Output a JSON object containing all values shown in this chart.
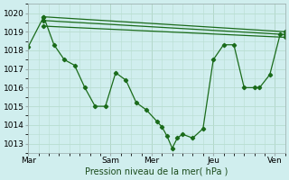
{
  "xlabel": "Pression niveau de la mer( hPa )",
  "background_color": "#d0eeee",
  "grid_color": "#b8ddd0",
  "line_color": "#1a6b1a",
  "ylim": [
    1012.5,
    1020.5
  ],
  "yticks": [
    1013,
    1014,
    1015,
    1016,
    1017,
    1018,
    1019,
    1020
  ],
  "xtick_labels": [
    "Mar",
    "Sam",
    "Mer",
    "Jeu",
    "Ven"
  ],
  "xtick_positions": [
    0,
    8,
    12,
    18,
    24
  ],
  "xlim": [
    0,
    25
  ],
  "top_line1_x": [
    1.5,
    25
  ],
  "top_line1_y": [
    1019.8,
    1019.0
  ],
  "top_line2_x": [
    1.5,
    25
  ],
  "top_line2_y": [
    1019.6,
    1018.85
  ],
  "top_line3_x": [
    1.5,
    25
  ],
  "top_line3_y": [
    1019.3,
    1018.7
  ],
  "main_x": [
    0,
    1.5,
    2.5,
    3.5,
    4.5,
    5.5,
    6.5,
    7.5,
    8.5,
    9.5,
    10.5,
    11.5,
    12.5,
    13.0,
    13.5,
    14.0,
    14.5,
    15.0,
    16.0,
    17.0,
    18.0,
    19.0,
    20.0,
    21.0,
    22.0,
    22.5,
    23.5,
    24.5
  ],
  "main_y": [
    1018.2,
    1019.8,
    1018.3,
    1017.5,
    1017.2,
    1016.0,
    1015.0,
    1015.0,
    1016.8,
    1016.4,
    1015.2,
    1014.8,
    1014.2,
    1013.9,
    1013.4,
    1012.75,
    1013.3,
    1013.5,
    1013.3,
    1013.8,
    1017.5,
    1018.3,
    1018.3,
    1016.0,
    1016.0,
    1016.0,
    1016.7,
    1018.85
  ],
  "marker": "D",
  "markersize": 2.2,
  "linewidth": 0.9
}
